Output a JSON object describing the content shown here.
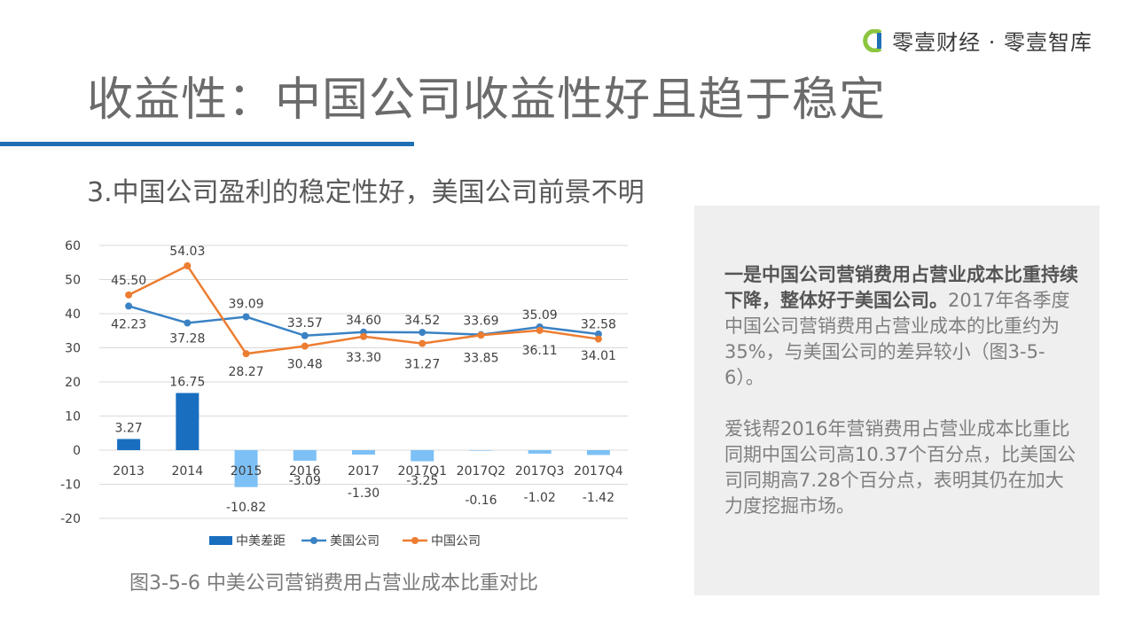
{
  "brand": {
    "name": "零壹财经 · 零壹智库"
  },
  "title": "收益性：中国公司收益性好且趋于稳定",
  "subtitle": "3.中国公司盈利的稳定性好，美国公司前景不明",
  "caption": "图3-5-6 中美公司营销费用占营业成本比重对比",
  "panel": {
    "p1_bold": "一是中国公司营销费用占营业成本比重持续下降，整体好于美国公司。",
    "p1_text": "2017年各季度中国公司营销费用占营业成本的比重约为35%，与美国公司的差异较小（图3-5-6）。",
    "p2_text": "爱钱帮2016年营销费用占营业成本比重比同期中国公司高10.37个百分点，比美国公司同期高7.28个百分点，表明其仍在加大力度挖掘市场。"
  },
  "colors": {
    "bar": "#1a6ec0",
    "bar_negative": "#7cc0f5",
    "us": "#3a82c4",
    "china": "#ed7d31",
    "accent_rule": "#1f6fb5",
    "panel_bg": "#efefef"
  },
  "chart_data": {
    "type": "bar",
    "categories": [
      "2013",
      "2014",
      "2015",
      "2016",
      "2017",
      "2017Q1",
      "2017Q2",
      "2017Q3",
      "2017Q4"
    ],
    "ylim": [
      -20,
      60
    ],
    "yticks": [
      -20,
      -10,
      0,
      10,
      20,
      30,
      40,
      50,
      60
    ],
    "grid": true,
    "legend_position": "bottom",
    "series": [
      {
        "name": "中美差距",
        "type": "bar",
        "values": [
          3.27,
          16.75,
          -10.82,
          -3.09,
          -1.3,
          -3.25,
          -0.16,
          -1.02,
          -1.42
        ]
      },
      {
        "name": "美国公司",
        "type": "line",
        "values": [
          42.23,
          37.28,
          39.09,
          33.57,
          34.6,
          34.52,
          33.85,
          36.11,
          34.01
        ]
      },
      {
        "name": "中国公司",
        "type": "line",
        "values": [
          45.5,
          54.03,
          28.27,
          30.48,
          33.3,
          31.27,
          33.69,
          35.09,
          32.58
        ]
      }
    ]
  }
}
